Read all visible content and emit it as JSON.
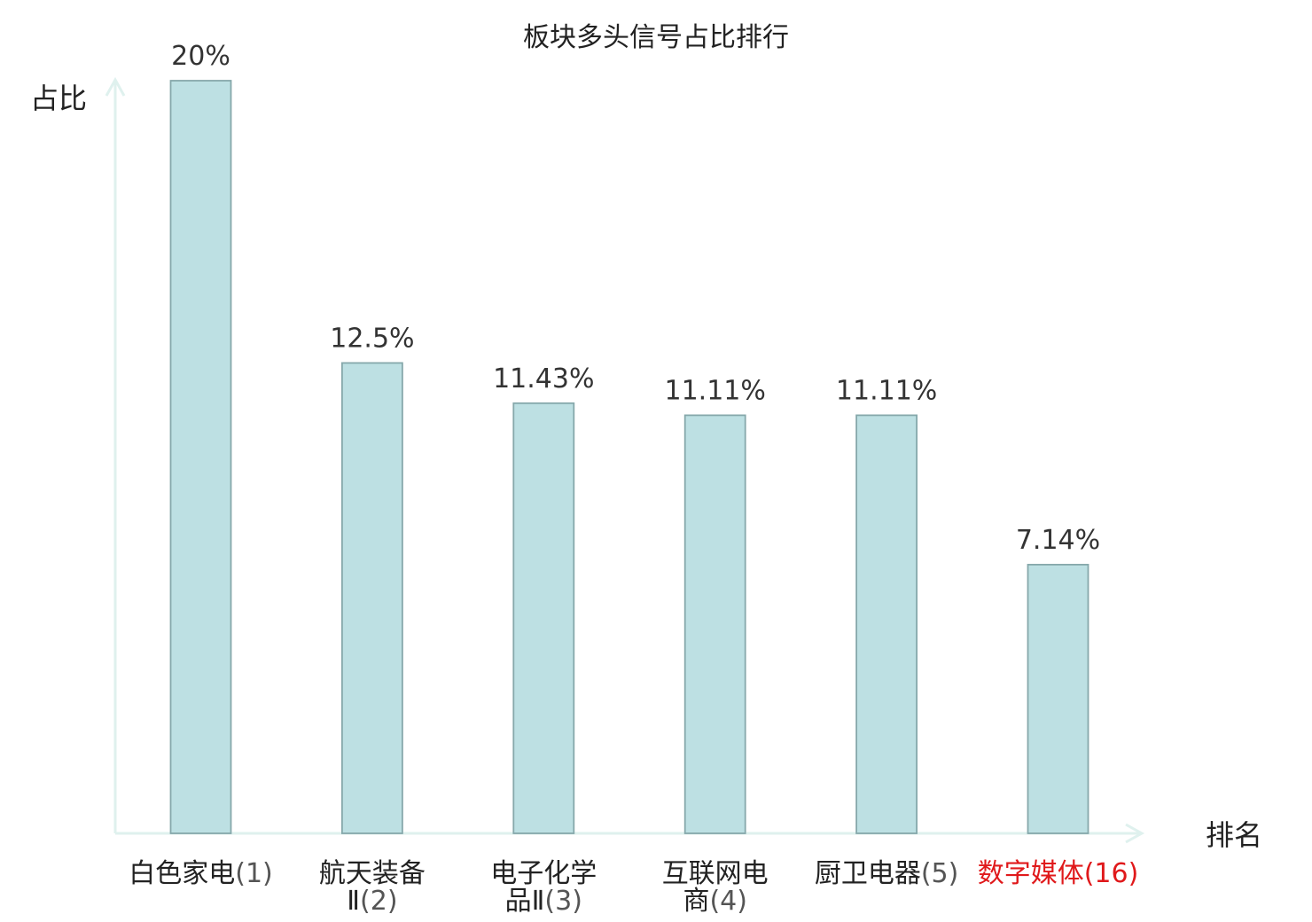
{
  "chart_data": {
    "type": "bar",
    "title": "板块多头信号占比排行",
    "xlabel": "排名",
    "ylabel": "占比",
    "ylim": [
      0,
      20
    ],
    "grid": false,
    "legend": "none",
    "categories": [
      {
        "lines": [
          "白色家电(1)"
        ],
        "value": 20,
        "value_label": "20%",
        "highlight": false
      },
      {
        "lines": [
          "航天装备",
          "Ⅱ(2)"
        ],
        "value": 12.5,
        "value_label": "12.5%",
        "highlight": false
      },
      {
        "lines": [
          "电子化学",
          "品Ⅱ(3)"
        ],
        "value": 11.43,
        "value_label": "11.43%",
        "highlight": false
      },
      {
        "lines": [
          "互联网电",
          "商(4)"
        ],
        "value": 11.11,
        "value_label": "11.11%",
        "highlight": false
      },
      {
        "lines": [
          "厨卫电器(5)"
        ],
        "value": 11.11,
        "value_label": "11.11%",
        "highlight": false
      },
      {
        "lines": [
          "数字媒体(16)"
        ],
        "value": 7.14,
        "value_label": "7.14%",
        "highlight": true
      }
    ]
  },
  "colors": {
    "bar_fill": "#bde0e3",
    "bar_stroke": "#86a8ab",
    "axis": "#dff1ee",
    "highlight": "#e0191b"
  }
}
